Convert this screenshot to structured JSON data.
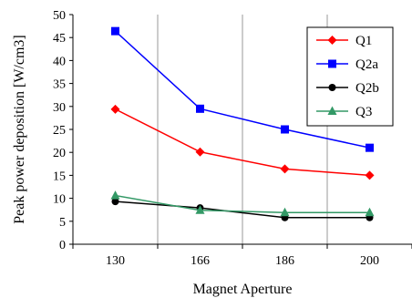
{
  "chart_data": {
    "type": "line",
    "categories": [
      "130",
      "166",
      "186",
      "200"
    ],
    "series": [
      {
        "name": "Q1",
        "values": [
          29.4,
          20.1,
          16.4,
          15.0
        ],
        "color": "#ff0000",
        "marker": "diamond"
      },
      {
        "name": "Q2a",
        "values": [
          46.4,
          29.5,
          25.0,
          21.0
        ],
        "color": "#0000ff",
        "marker": "square"
      },
      {
        "name": "Q2b",
        "values": [
          9.3,
          7.9,
          5.8,
          5.8
        ],
        "color": "#000000",
        "marker": "circle"
      },
      {
        "name": "Q3",
        "values": [
          10.6,
          7.4,
          6.9,
          6.9
        ],
        "color": "#339966",
        "marker": "triangle"
      }
    ],
    "title": "",
    "xlabel": "Magnet Aperture",
    "ylabel": "Peak power deposition [W/cm3]",
    "ylim": [
      0,
      50
    ],
    "yticks": [
      "0",
      "5",
      "10",
      "15",
      "20",
      "25",
      "30",
      "35",
      "40",
      "45",
      "50"
    ],
    "grid": "vertical",
    "legend_position": "top-right"
  }
}
